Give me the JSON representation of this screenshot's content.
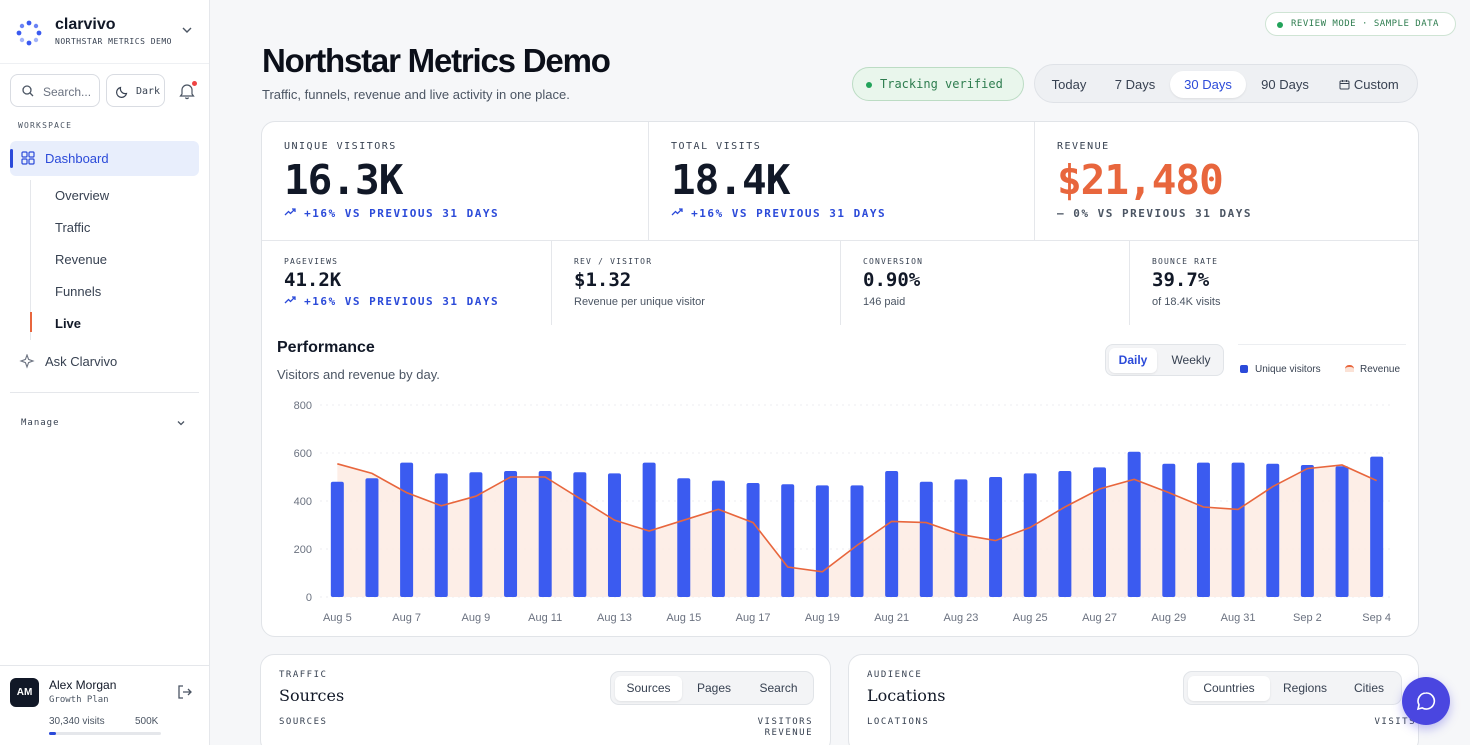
{
  "brand": {
    "name": "clarvivo",
    "sub": "NORTHSTAR METRICS DEMO"
  },
  "sidebar": {
    "search_label": "Search...",
    "theme_label": "Dark",
    "section_label": "WORKSPACE",
    "dashboard_label": "Dashboard",
    "subitems": [
      "Overview",
      "Traffic",
      "Revenue",
      "Funnels",
      "Live"
    ],
    "ask_label": "Ask Clarvivo",
    "manage_label": "Manage"
  },
  "user": {
    "initials": "AM",
    "name": "Alex Morgan",
    "plan": "Growth Plan",
    "visits": "30,340 visits",
    "limit": "500K",
    "usage": 0.06
  },
  "header": {
    "review": "REVIEW MODE · SAMPLE DATA",
    "title": "Northstar Metrics Demo",
    "subtitle": "Traffic, funnels, revenue and live activity in one place.",
    "tracking": "Tracking verified",
    "ranges": [
      "Today",
      "7 Days",
      "30 Days",
      "90 Days",
      "Custom"
    ],
    "active_range": "30 Days"
  },
  "kpis": {
    "visitors": {
      "label": "UNIQUE VISITORS",
      "value": "16.3K",
      "delta": "+16% VS PREVIOUS 31 DAYS"
    },
    "visits": {
      "label": "TOTAL VISITS",
      "value": "18.4K",
      "delta": "+16% VS PREVIOUS 31 DAYS"
    },
    "revenue": {
      "label": "REVENUE",
      "value": "$21,480",
      "delta": "0% VS PREVIOUS 31 DAYS",
      "color": "#e8663d"
    },
    "pageviews": {
      "label": "PAGEVIEWS",
      "value": "41.2K",
      "delta": "+16% VS PREVIOUS 31 DAYS"
    },
    "rev_visitor": {
      "label": "REV / VISITOR",
      "value": "$1.32",
      "sub": "Revenue per unique visitor"
    },
    "conversion": {
      "label": "CONVERSION",
      "value": "0.90%",
      "sub": "146 paid"
    },
    "bounce": {
      "label": "BOUNCE RATE",
      "value": "39.7%",
      "sub": "of 18.4K visits"
    }
  },
  "performance": {
    "title": "Performance",
    "subtitle": "Visitors and revenue by day.",
    "toggle": [
      "Daily",
      "Weekly"
    ],
    "active": "Daily"
  },
  "chart_data": {
    "type": "bar",
    "ylim": [
      0,
      800
    ],
    "yticks": [
      0,
      200,
      400,
      600,
      800
    ],
    "xtick_labels": [
      "Aug 5",
      "Aug 7",
      "Aug 9",
      "Aug 11",
      "Aug 13",
      "Aug 15",
      "Aug 17",
      "Aug 19",
      "Aug 21",
      "Aug 23",
      "Aug 25",
      "Aug 27",
      "Aug 29",
      "Aug 31",
      "Sep 2",
      "Sep 4"
    ],
    "series": [
      {
        "name": "Unique visitors",
        "type": "bar",
        "color": "#3b5bf0",
        "values": [
          480,
          495,
          560,
          515,
          520,
          525,
          525,
          520,
          515,
          560,
          495,
          485,
          475,
          470,
          465,
          465,
          525,
          480,
          490,
          500,
          515,
          525,
          540,
          605,
          555,
          560,
          560,
          555,
          550,
          545,
          585
        ]
      },
      {
        "name": "Revenue",
        "type": "area",
        "color": "#e8663d",
        "fill": "#fdebe3",
        "values": [
          555,
          515,
          435,
          380,
          420,
          500,
          500,
          410,
          320,
          275,
          320,
          365,
          310,
          125,
          105,
          215,
          315,
          310,
          260,
          235,
          290,
          375,
          450,
          490,
          435,
          375,
          365,
          460,
          535,
          550,
          485
        ]
      }
    ],
    "grid": true,
    "legend": "top-right"
  },
  "traffic": {
    "label": "TRAFFIC",
    "title": "Sources",
    "tabs": [
      "Sources",
      "Pages",
      "Search"
    ],
    "active": "Sources",
    "col_left": "SOURCES",
    "col_right1": "VISITORS",
    "col_right2": "REVENUE"
  },
  "audience": {
    "label": "AUDIENCE",
    "title": "Locations",
    "tabs": [
      "Countries",
      "Regions",
      "Cities"
    ],
    "active": "Countries",
    "col_left": "LOCATIONS",
    "col_right1": "VISITS"
  }
}
